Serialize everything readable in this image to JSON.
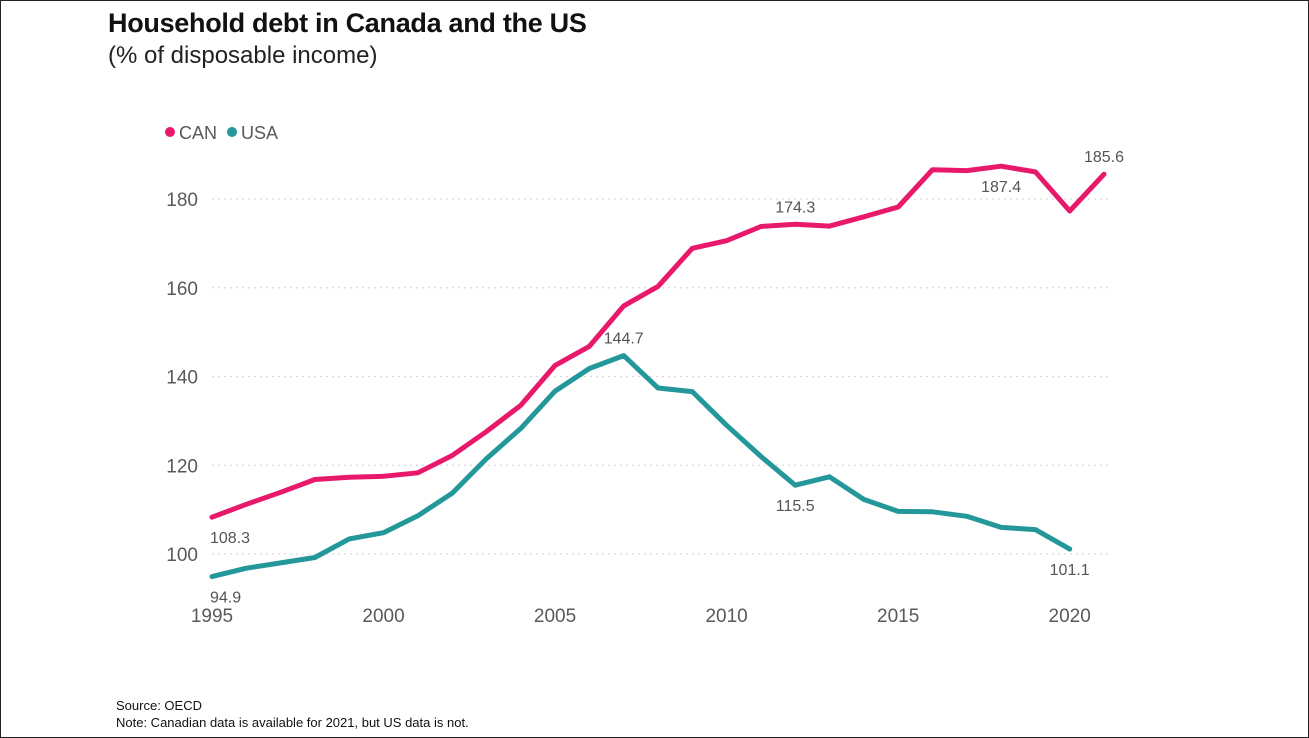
{
  "header": {
    "title": "Household debt in Canada and the US",
    "subtitle": "(% of disposable income)"
  },
  "footer": {
    "source": "Source:  OECD",
    "note": "Note: Canadian data is available for 2021, but US data is not."
  },
  "colors": {
    "can": "#e8196b",
    "usa": "#23979a",
    "grid": "#d9d9d9",
    "tick": "#595959",
    "label": "#555555"
  },
  "chart_data": {
    "type": "line",
    "title": "Household debt in Canada and the US",
    "subtitle": "(% of disposable income)",
    "xlabel": "",
    "ylabel": "",
    "xlim": [
      1995,
      2021
    ],
    "ylim": [
      90,
      190
    ],
    "x_ticks": [
      1995,
      2000,
      2005,
      2010,
      2015,
      2020
    ],
    "y_ticks": [
      100,
      120,
      140,
      160,
      180
    ],
    "grid": "horizontal-dotted",
    "legend": "top-left",
    "series": [
      {
        "name": "CAN",
        "color": "#e8196b",
        "x": [
          1995,
          1996,
          1997,
          1998,
          1999,
          2000,
          2001,
          2002,
          2003,
          2004,
          2005,
          2006,
          2007,
          2008,
          2009,
          2010,
          2011,
          2012,
          2013,
          2014,
          2015,
          2016,
          2017,
          2018,
          2019,
          2020,
          2021
        ],
        "values": [
          108.3,
          111.2,
          113.9,
          116.8,
          117.3,
          117.5,
          118.3,
          122.2,
          127.6,
          133.5,
          142.5,
          146.8,
          155.9,
          160.3,
          168.9,
          170.6,
          173.8,
          174.3,
          173.9,
          176.0,
          178.2,
          186.6,
          186.4,
          187.4,
          186.1,
          177.3,
          185.6
        ]
      },
      {
        "name": "USA",
        "color": "#23979a",
        "x": [
          1995,
          1996,
          1997,
          1998,
          1999,
          2000,
          2001,
          2002,
          2003,
          2004,
          2005,
          2006,
          2007,
          2008,
          2009,
          2010,
          2011,
          2012,
          2013,
          2014,
          2015,
          2016,
          2017,
          2018,
          2019,
          2020
        ],
        "values": [
          94.9,
          96.8,
          98.0,
          99.2,
          103.4,
          104.8,
          108.6,
          113.7,
          121.5,
          128.3,
          136.7,
          141.8,
          144.7,
          137.4,
          136.6,
          129.0,
          122.0,
          115.5,
          117.4,
          112.3,
          109.6,
          109.5,
          108.5,
          106.0,
          105.5,
          101.1
        ]
      }
    ],
    "annotations": [
      {
        "series": "CAN",
        "x": 1995,
        "value": 108.3,
        "text": "108.3",
        "pos": "below"
      },
      {
        "series": "CAN",
        "x": 2012,
        "value": 174.3,
        "text": "174.3",
        "pos": "above"
      },
      {
        "series": "CAN",
        "x": 2018,
        "value": 187.4,
        "text": "187.4",
        "pos": "below"
      },
      {
        "series": "CAN",
        "x": 2021,
        "value": 185.6,
        "text": "185.6",
        "pos": "above"
      },
      {
        "series": "USA",
        "x": 1995,
        "value": 94.9,
        "text": "94.9",
        "pos": "below"
      },
      {
        "series": "USA",
        "x": 2007,
        "value": 144.7,
        "text": "144.7",
        "pos": "above"
      },
      {
        "series": "USA",
        "x": 2012,
        "value": 115.5,
        "text": "115.5",
        "pos": "below"
      },
      {
        "series": "USA",
        "x": 2020,
        "value": 101.1,
        "text": "101.1",
        "pos": "below"
      }
    ]
  }
}
